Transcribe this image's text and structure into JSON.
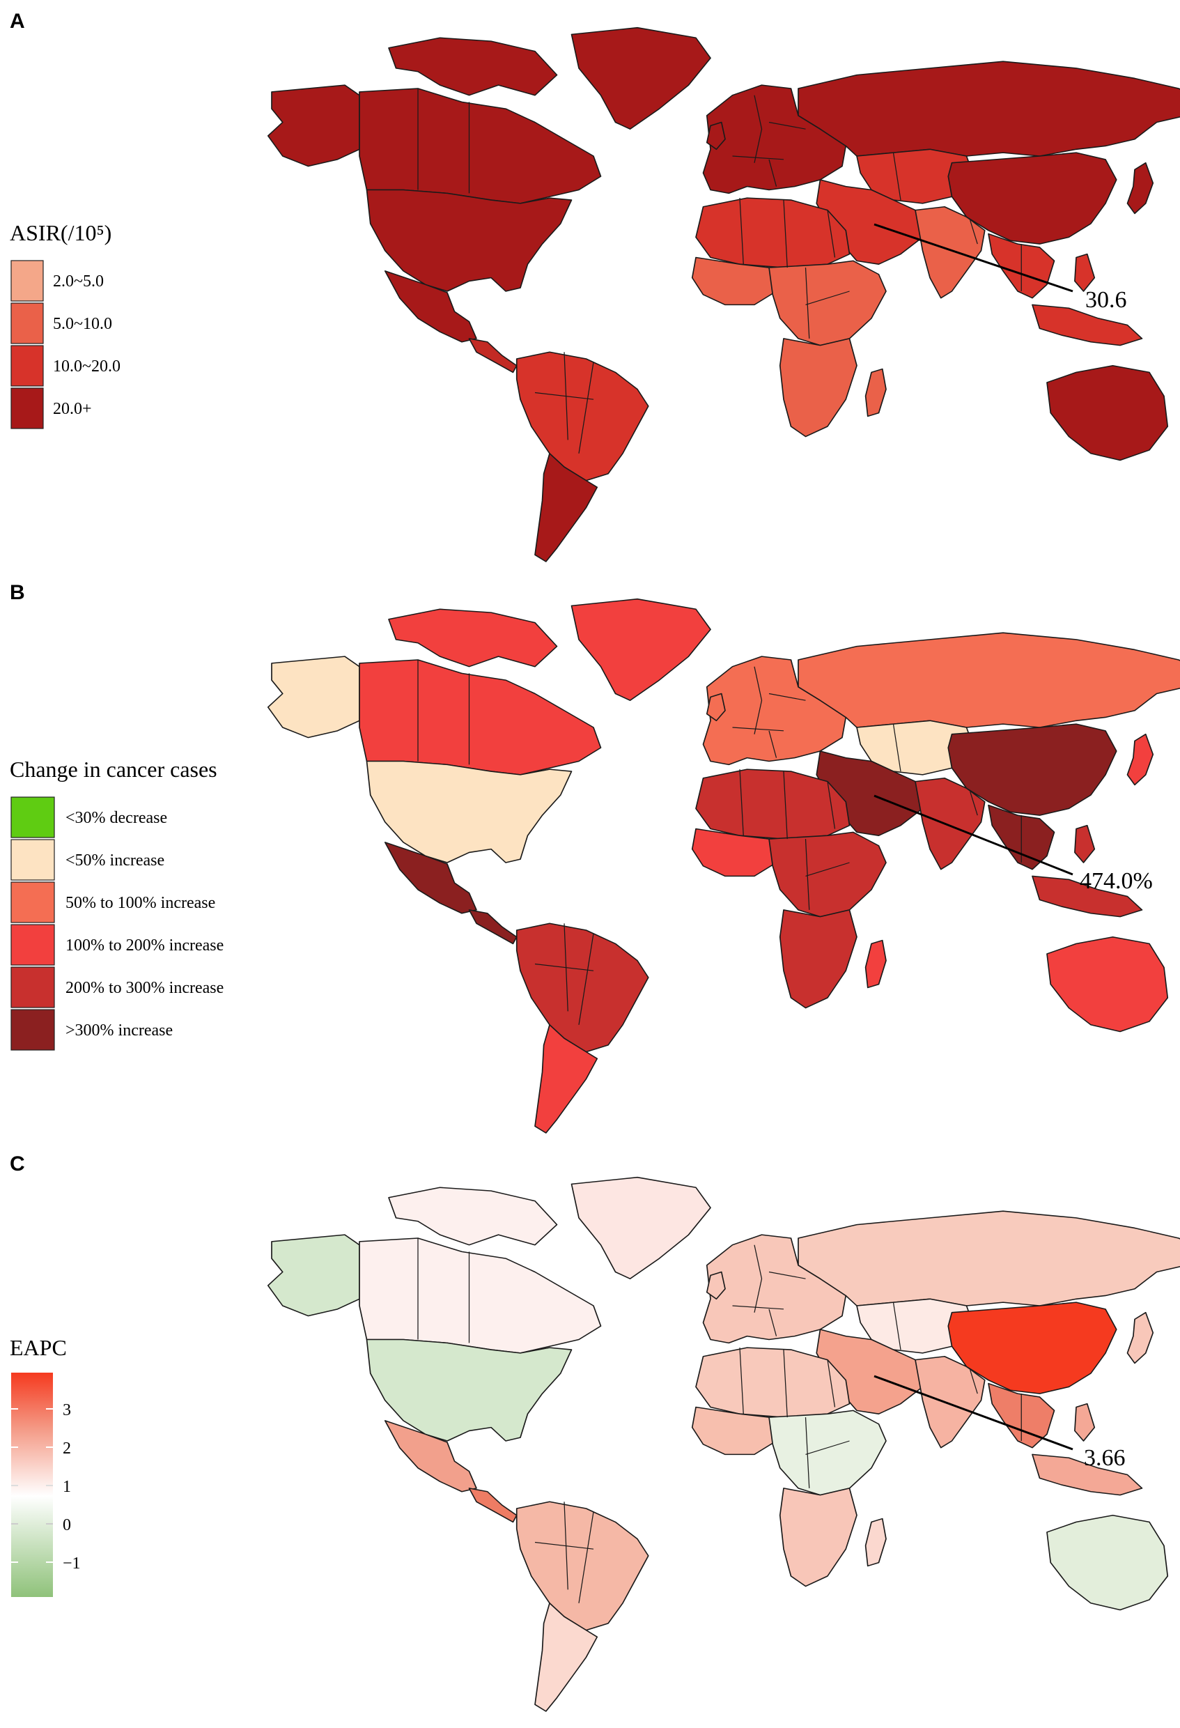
{
  "panels": [
    {
      "letter": "A",
      "legend": {
        "title": "ASIR(/10⁵)",
        "items": [
          {
            "label": "2.0~5.0",
            "color": "#f4a789"
          },
          {
            "label": "5.0~10.0",
            "color": "#ea6149"
          },
          {
            "label": "10.0~20.0",
            "color": "#d7332a"
          },
          {
            "label": "20.0+",
            "color": "#a71919"
          }
        ]
      },
      "region_colors": {
        "north_america": "#a71919",
        "greenland": "#a71919",
        "alaska": "#a71919",
        "usa": "#a71919",
        "mexico": "#a71919",
        "central_america": "#c22a24",
        "south_america": "#d7332a",
        "southern_cone": "#a71919",
        "europe": "#a71919",
        "russia": "#a71919",
        "central_asia": "#d7332a",
        "middle_east": "#d7332a",
        "south_asia": "#ea6149",
        "china": "#a71919",
        "southeast_asia": "#d7332a",
        "japan": "#a71919",
        "north_africa": "#d7332a",
        "west_africa": "#ea6149",
        "central_africa": "#ea6149",
        "southern_africa": "#ea6149",
        "madagascar": "#ea6149",
        "indonesia": "#d7332a",
        "australia": "#a71919",
        "new_zealand": "#a71919"
      },
      "callout": {
        "value": "30.6"
      }
    },
    {
      "letter": "B",
      "legend": {
        "title": "Change in cancer cases",
        "items": [
          {
            "label": "<30% decrease",
            "color": "#5fcc12"
          },
          {
            "label": "<50% increase",
            "color": "#fde3c2"
          },
          {
            "label": "50% to 100% increase",
            "color": "#f46e53"
          },
          {
            "label": "100% to 200% increase",
            "color": "#f2403e"
          },
          {
            "label": "200% to 300% increase",
            "color": "#c8302e"
          },
          {
            "label": ">300% increase",
            "color": "#8b2020"
          }
        ]
      },
      "region_colors": {
        "north_america": "#f2403e",
        "greenland": "#f2403e",
        "alaska": "#fde3c2",
        "usa": "#fde3c2",
        "mexico": "#8b2020",
        "central_america": "#8b2020",
        "south_america": "#c8302e",
        "southern_cone": "#f2403e",
        "europe": "#f46e53",
        "russia": "#f46e53",
        "central_asia": "#fde3c2",
        "middle_east": "#8b2020",
        "south_asia": "#c8302e",
        "china": "#8b2020",
        "southeast_asia": "#8b2020",
        "japan": "#f2403e",
        "north_africa": "#c8302e",
        "west_africa": "#f2403e",
        "central_africa": "#c8302e",
        "southern_africa": "#c8302e",
        "madagascar": "#f2403e",
        "indonesia": "#c8302e",
        "australia": "#f2403e",
        "new_zealand": "#f2403e"
      },
      "callout": {
        "value": "474.0%"
      }
    },
    {
      "letter": "C",
      "legend": {
        "title": "EAPC",
        "ticks": [
          "3",
          "2",
          "1",
          "0",
          "−1"
        ],
        "gradient": [
          "#f53a1f",
          "#f49a86",
          "#ffffff",
          "#d9ead2",
          "#8fc27a"
        ]
      },
      "region_colors": {
        "north_america": "#fdf0ee",
        "greenland": "#fde6e2",
        "alaska": "#d5e8cd",
        "usa": "#d5e8cd",
        "mexico": "#f2a08c",
        "central_america": "#ee7c64",
        "south_america": "#f5b8a6",
        "southern_cone": "#fbd9cf",
        "europe": "#f8c7b9",
        "russia": "#f8cbbd",
        "central_asia": "#fdeae5",
        "middle_east": "#f4a28d",
        "south_asia": "#f6b3a2",
        "china": "#f53a1f",
        "southeast_asia": "#ee7e68",
        "japan": "#f8c7b9",
        "north_africa": "#f8c9bb",
        "west_africa": "#f7bfae",
        "central_africa": "#e8f1e2",
        "southern_africa": "#f8c6b8",
        "madagascar": "#fbd8cf",
        "indonesia": "#f4a896",
        "australia": "#e3eedb",
        "new_zealand": "#f8c7b9"
      },
      "callout": {
        "value": "3.66"
      }
    }
  ]
}
